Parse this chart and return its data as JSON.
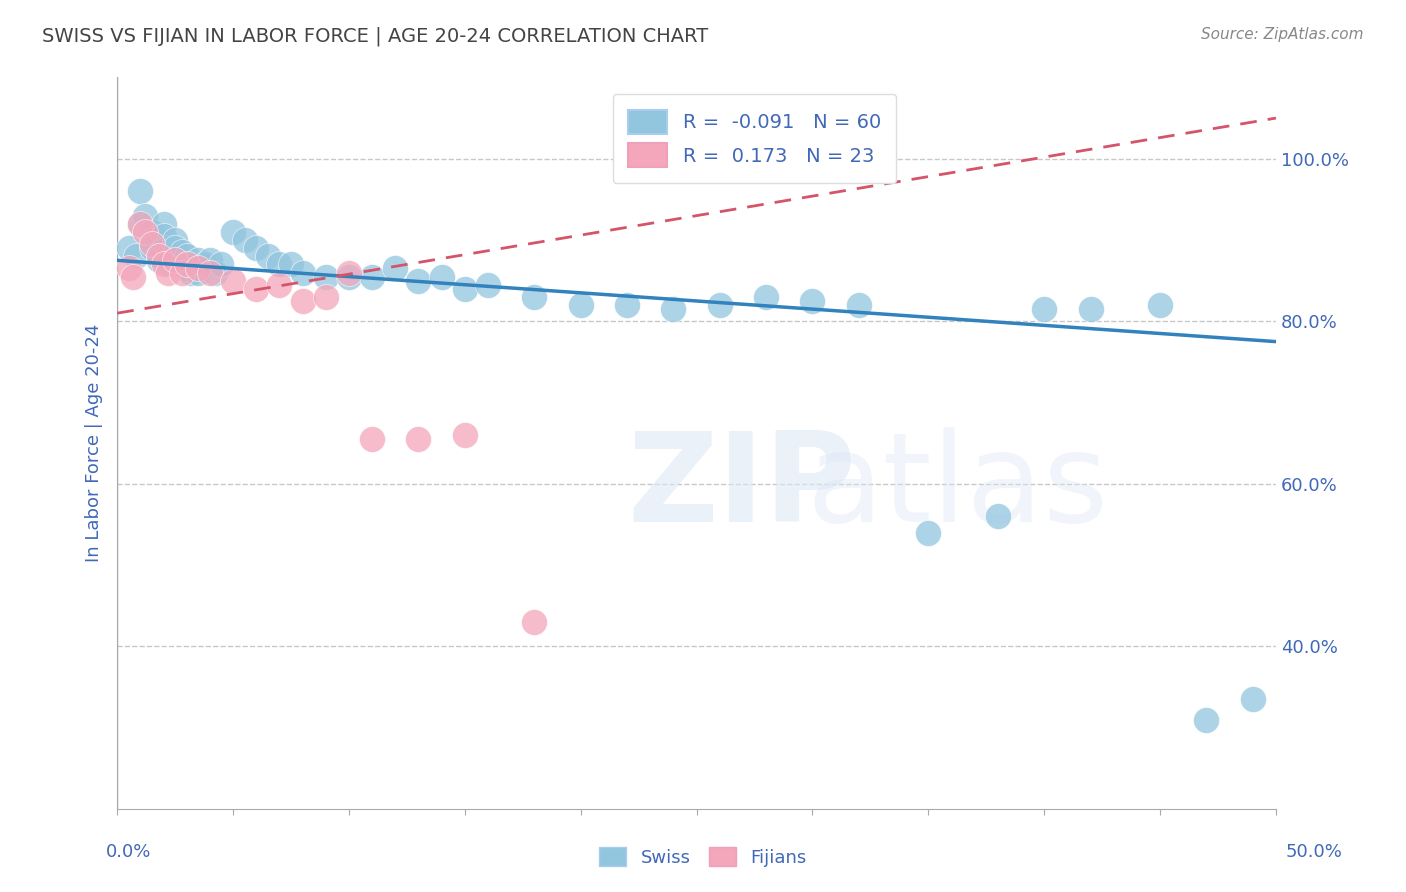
{
  "title": "SWISS VS FIJIAN IN LABOR FORCE | AGE 20-24 CORRELATION CHART",
  "ylabel": "In Labor Force | Age 20-24",
  "source": "Source: ZipAtlas.com",
  "xlim": [
    0.0,
    0.5
  ],
  "ylim": [
    0.2,
    1.1
  ],
  "yticks": [
    0.4,
    0.6,
    0.8,
    1.0
  ],
  "ytick_labels": [
    "40.0%",
    "60.0%",
    "80.0%",
    "100.0%"
  ],
  "swiss_R": -0.091,
  "swiss_N": 60,
  "fijian_R": 0.173,
  "fijian_N": 23,
  "swiss_color": "#92c5de",
  "fijian_color": "#f4a6bb",
  "swiss_line_color": "#3182bd",
  "fijian_line_color": "#d4546a",
  "grid_color": "#c8c8c8",
  "text_color": "#4169b8",
  "title_color": "#444444",
  "swiss_x": [
    0.005,
    0.008,
    0.01,
    0.01,
    0.012,
    0.015,
    0.015,
    0.015,
    0.018,
    0.018,
    0.02,
    0.02,
    0.022,
    0.022,
    0.022,
    0.025,
    0.025,
    0.025,
    0.028,
    0.028,
    0.03,
    0.03,
    0.032,
    0.032,
    0.035,
    0.035,
    0.038,
    0.04,
    0.042,
    0.045,
    0.05,
    0.055,
    0.06,
    0.065,
    0.07,
    0.075,
    0.08,
    0.09,
    0.1,
    0.11,
    0.12,
    0.13,
    0.14,
    0.15,
    0.16,
    0.18,
    0.2,
    0.22,
    0.24,
    0.26,
    0.28,
    0.3,
    0.32,
    0.35,
    0.38,
    0.4,
    0.42,
    0.45,
    0.47,
    0.49
  ],
  "swiss_y": [
    0.89,
    0.88,
    0.96,
    0.92,
    0.93,
    0.91,
    0.9,
    0.89,
    0.88,
    0.875,
    0.92,
    0.905,
    0.89,
    0.88,
    0.87,
    0.9,
    0.89,
    0.875,
    0.885,
    0.87,
    0.88,
    0.865,
    0.87,
    0.86,
    0.875,
    0.86,
    0.87,
    0.875,
    0.86,
    0.87,
    0.91,
    0.9,
    0.89,
    0.88,
    0.87,
    0.87,
    0.86,
    0.855,
    0.855,
    0.855,
    0.865,
    0.85,
    0.855,
    0.84,
    0.845,
    0.83,
    0.82,
    0.82,
    0.815,
    0.82,
    0.83,
    0.825,
    0.82,
    0.54,
    0.56,
    0.815,
    0.815,
    0.82,
    0.31,
    0.335
  ],
  "fijian_x": [
    0.005,
    0.007,
    0.01,
    0.012,
    0.015,
    0.018,
    0.02,
    0.022,
    0.025,
    0.028,
    0.03,
    0.035,
    0.04,
    0.05,
    0.06,
    0.07,
    0.08,
    0.09,
    0.1,
    0.11,
    0.13,
    0.15,
    0.18
  ],
  "fijian_y": [
    0.865,
    0.855,
    0.92,
    0.91,
    0.895,
    0.88,
    0.87,
    0.86,
    0.875,
    0.86,
    0.87,
    0.865,
    0.86,
    0.85,
    0.84,
    0.845,
    0.825,
    0.83,
    0.86,
    0.655,
    0.655,
    0.66,
    0.43
  ],
  "swiss_line_x0": 0.0,
  "swiss_line_x1": 0.5,
  "swiss_line_y0": 0.875,
  "swiss_line_y1": 0.775,
  "fijian_line_x0": 0.0,
  "fijian_line_x1": 0.5,
  "fijian_line_y0": 0.81,
  "fijian_line_y1": 1.05
}
